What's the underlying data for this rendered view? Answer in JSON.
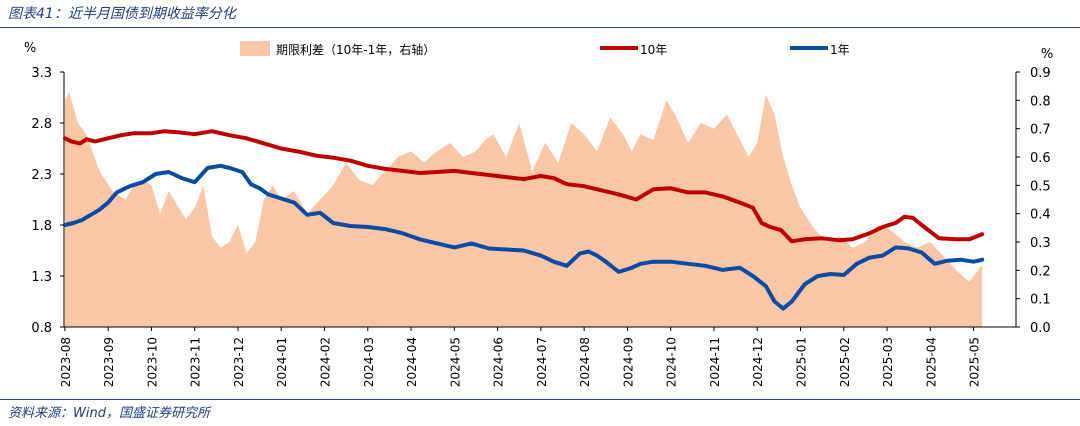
{
  "header": {
    "title": "图表41：近半月国债到期收益率分化"
  },
  "footer": {
    "source": "资料来源：Wind，国盛证券研究所"
  },
  "colors": {
    "spread": "#f8c7a8",
    "ten_year": "#c00000",
    "one_year": "#0b4ba3",
    "title": "#1f3e7a"
  },
  "chart_data": {
    "type": "line",
    "left_axis": {
      "unit": "%",
      "ylim": [
        0.8,
        3.3
      ],
      "ticks": [
        "3.3",
        "2.8",
        "2.3",
        "1.8",
        "1.3",
        "0.8"
      ]
    },
    "right_axis": {
      "unit": "%",
      "ylim": [
        0.0,
        0.9
      ],
      "ticks": [
        "0.9",
        "0.8",
        "0.7",
        "0.6",
        "0.5",
        "0.4",
        "0.3",
        "0.2",
        "0.1",
        "0.0"
      ]
    },
    "x_ticks": [
      "2023-08",
      "2023-09",
      "2023-10",
      "2023-11",
      "2023-12",
      "2024-01",
      "2024-02",
      "2024-03",
      "2024-04",
      "2024-05",
      "2024-06",
      "2024-07",
      "2024-08",
      "2024-09",
      "2024-10",
      "2024-11",
      "2024-12",
      "2025-01",
      "2025-02",
      "2025-03",
      "2025-04",
      "2025-05"
    ],
    "legend": {
      "spread": "期限利差（10年-1年，右轴）",
      "ten_year": "10年",
      "one_year": "1年"
    },
    "series": [
      {
        "name": "10年",
        "axis": "left",
        "x": [
          0,
          0.05,
          0.15,
          0.35,
          0.5,
          0.7,
          1,
          1.3,
          1.6,
          2,
          2.3,
          2.6,
          3,
          3.4,
          3.8,
          4.2,
          4.6,
          5,
          5.4,
          5.8,
          6.2,
          6.6,
          7,
          7.4,
          7.8,
          8.2,
          8.6,
          9,
          9.4,
          9.8,
          10.2,
          10.6,
          11,
          11.3,
          11.6,
          12,
          12.4,
          12.8,
          13.2,
          13.6,
          14,
          14.4,
          14.8,
          15.2,
          15.6,
          15.9,
          16.1,
          16.3,
          16.55,
          16.8,
          17.1,
          17.5,
          17.9,
          18.2,
          18.6,
          18.9,
          19.2,
          19.4,
          19.6,
          19.8,
          20.2,
          20.6,
          20.9,
          21.2
        ],
        "values": [
          2.65,
          2.64,
          2.62,
          2.6,
          2.64,
          2.62,
          2.65,
          2.68,
          2.7,
          2.7,
          2.72,
          2.71,
          2.69,
          2.72,
          2.68,
          2.65,
          2.6,
          2.55,
          2.52,
          2.48,
          2.46,
          2.43,
          2.38,
          2.35,
          2.33,
          2.31,
          2.32,
          2.33,
          2.31,
          2.29,
          2.27,
          2.25,
          2.28,
          2.26,
          2.2,
          2.18,
          2.14,
          2.1,
          2.05,
          2.15,
          2.16,
          2.12,
          2.12,
          2.08,
          2.02,
          1.97,
          1.82,
          1.78,
          1.75,
          1.64,
          1.66,
          1.67,
          1.65,
          1.66,
          1.72,
          1.78,
          1.82,
          1.88,
          1.87,
          1.8,
          1.67,
          1.66,
          1.66,
          1.71
        ]
      },
      {
        "name": "1年",
        "axis": "left",
        "x": [
          0,
          0.2,
          0.4,
          0.6,
          0.8,
          1,
          1.2,
          1.5,
          1.8,
          2.1,
          2.4,
          2.7,
          3,
          3.3,
          3.6,
          3.8,
          4.1,
          4.3,
          4.5,
          4.7,
          5,
          5.3,
          5.6,
          5.9,
          6.2,
          6.6,
          7,
          7.4,
          7.8,
          8.2,
          8.6,
          9,
          9.4,
          9.8,
          10.2,
          10.6,
          11,
          11.3,
          11.6,
          11.9,
          12.1,
          12.3,
          12.5,
          12.8,
          13.1,
          13.3,
          13.6,
          14,
          14.4,
          14.8,
          15.2,
          15.6,
          15.9,
          16.2,
          16.4,
          16.6,
          16.8,
          17.1,
          17.4,
          17.7,
          18,
          18.3,
          18.6,
          18.9,
          19.2,
          19.5,
          19.8,
          20.1,
          20.4,
          20.7,
          21,
          21.2
        ],
        "values": [
          1.8,
          1.82,
          1.85,
          1.9,
          1.95,
          2.02,
          2.12,
          2.18,
          2.22,
          2.3,
          2.32,
          2.26,
          2.22,
          2.36,
          2.38,
          2.36,
          2.32,
          2.2,
          2.16,
          2.1,
          2.06,
          2.02,
          1.9,
          1.92,
          1.82,
          1.79,
          1.78,
          1.76,
          1.72,
          1.66,
          1.62,
          1.58,
          1.62,
          1.57,
          1.56,
          1.55,
          1.5,
          1.44,
          1.4,
          1.52,
          1.54,
          1.5,
          1.44,
          1.34,
          1.38,
          1.42,
          1.44,
          1.44,
          1.42,
          1.4,
          1.36,
          1.38,
          1.3,
          1.2,
          1.05,
          0.98,
          1.05,
          1.22,
          1.3,
          1.32,
          1.31,
          1.42,
          1.48,
          1.5,
          1.58,
          1.57,
          1.53,
          1.42,
          1.45,
          1.46,
          1.44,
          1.46
        ]
      },
      {
        "name": "期限利差（10年-1年，右轴）",
        "axis": "right",
        "style": "area",
        "x": [
          0,
          0.1,
          0.3,
          0.5,
          0.8,
          1.1,
          1.4,
          1.6,
          1.8,
          2,
          2.2,
          2.4,
          2.6,
          2.8,
          3,
          3.2,
          3.4,
          3.6,
          3.8,
          4,
          4.2,
          4.4,
          4.6,
          4.8,
          5,
          5.3,
          5.6,
          5.9,
          6.2,
          6.5,
          6.8,
          7.1,
          7.4,
          7.7,
          8,
          8.3,
          8.6,
          8.9,
          9.2,
          9.5,
          9.7,
          9.9,
          10.2,
          10.5,
          10.8,
          11.1,
          11.4,
          11.7,
          12,
          12.3,
          12.6,
          12.9,
          13.1,
          13.3,
          13.6,
          13.9,
          14.1,
          14.4,
          14.7,
          15,
          15.3,
          15.6,
          15.8,
          16,
          16.2,
          16.4,
          16.6,
          16.8,
          17,
          17.3,
          17.6,
          17.9,
          18.2,
          18.5,
          18.8,
          19.1,
          19.4,
          19.7,
          20,
          20.3,
          20.6,
          20.9,
          21.2
        ],
        "values": [
          0.8,
          0.83,
          0.72,
          0.68,
          0.55,
          0.48,
          0.45,
          0.5,
          0.52,
          0.5,
          0.4,
          0.48,
          0.43,
          0.38,
          0.42,
          0.5,
          0.32,
          0.28,
          0.3,
          0.36,
          0.26,
          0.3,
          0.45,
          0.5,
          0.45,
          0.48,
          0.4,
          0.45,
          0.5,
          0.58,
          0.52,
          0.5,
          0.55,
          0.6,
          0.62,
          0.58,
          0.62,
          0.65,
          0.6,
          0.62,
          0.66,
          0.68,
          0.6,
          0.72,
          0.55,
          0.65,
          0.58,
          0.72,
          0.68,
          0.62,
          0.74,
          0.68,
          0.62,
          0.68,
          0.66,
          0.8,
          0.75,
          0.65,
          0.72,
          0.7,
          0.75,
          0.66,
          0.6,
          0.65,
          0.82,
          0.75,
          0.6,
          0.5,
          0.42,
          0.35,
          0.3,
          0.32,
          0.28,
          0.3,
          0.36,
          0.34,
          0.3,
          0.28,
          0.3,
          0.25,
          0.2,
          0.16,
          0.22
        ]
      }
    ]
  }
}
